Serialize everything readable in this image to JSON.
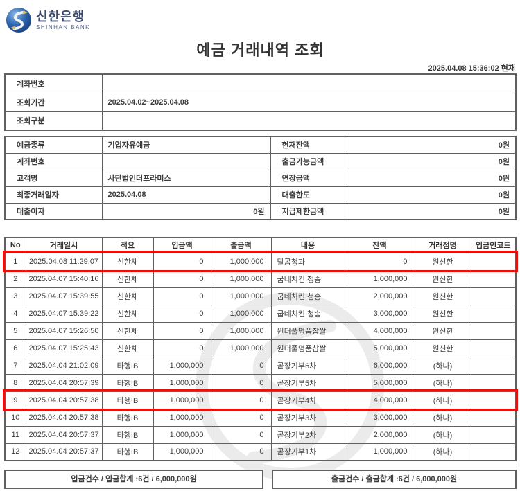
{
  "brand": {
    "name_ko": "신한은행",
    "name_en": "SHINHAN BANK"
  },
  "page": {
    "title": "예금 거래내역 조회",
    "timestamp": "2025.04.08 15:36:02 현재"
  },
  "colors": {
    "highlight_red": "#e8100c",
    "border_gray": "#606060",
    "brand_blue": "#1e4e9c",
    "brand_gold": "#d8b45c",
    "watermark_gray": "#ebebeb"
  },
  "icons": {
    "logo": "shinhan-globe-logo",
    "watermark": "shinhan-globe-watermark"
  },
  "query_info": {
    "rows": [
      {
        "label": "계좌번호",
        "value": ""
      },
      {
        "label": "조회기간",
        "value": "2025.04.02~2025.04.08"
      },
      {
        "label": "조회구분",
        "value": ""
      }
    ]
  },
  "account_info": {
    "rows": [
      {
        "label_left": "예금종류",
        "value_left": "기업자유예금",
        "label_right": "현재잔액",
        "value_right": "0원"
      },
      {
        "label_left": "계좌번호",
        "value_left": "",
        "label_right": "출금가능금액",
        "value_right": "0원"
      },
      {
        "label_left": "고객명",
        "value_left": "사단법인더프라미스",
        "label_right": "연장금액",
        "value_right": "0원"
      },
      {
        "label_left": "최종거래일자",
        "value_left": "2025.04.08",
        "label_right": "대출한도",
        "value_right": "0원"
      },
      {
        "label_left": "대출이자",
        "value_left": "0원",
        "label_right": "지급제한금액",
        "value_right": "0원"
      }
    ]
  },
  "transactions": {
    "columns": [
      "No",
      "거래일시",
      "적요",
      "입금액",
      "출금액",
      "내용",
      "잔액",
      "거래점명",
      "입금인코드"
    ],
    "rows": [
      {
        "no": "1",
        "datetime": "2025.04.08 11:29:07",
        "type": "신한체",
        "deposit": "0",
        "withdrawal": "1,000,000",
        "description": "달콤청과",
        "balance": "0",
        "branch": "원신한",
        "code": "",
        "highlighted": true
      },
      {
        "no": "2",
        "datetime": "2025.04.07 15:40:16",
        "type": "신한체",
        "deposit": "0",
        "withdrawal": "1,000,000",
        "description": "굽네치킨 청송",
        "balance": "1,000,000",
        "branch": "원신한",
        "code": "",
        "highlighted": false
      },
      {
        "no": "3",
        "datetime": "2025.04.07 15:39:55",
        "type": "신한체",
        "deposit": "0",
        "withdrawal": "1,000,000",
        "description": "굽네치킨 청송",
        "balance": "2,000,000",
        "branch": "원신한",
        "code": "",
        "highlighted": false
      },
      {
        "no": "4",
        "datetime": "2025.04.07 15:39:22",
        "type": "신한체",
        "deposit": "0",
        "withdrawal": "1,000,000",
        "description": "굽네치킨 청송",
        "balance": "3,000,000",
        "branch": "원신한",
        "code": "",
        "highlighted": false
      },
      {
        "no": "5",
        "datetime": "2025.04.07 15:26:50",
        "type": "신한체",
        "deposit": "0",
        "withdrawal": "1,000,000",
        "description": "원더풀명품찹쌀",
        "balance": "4,000,000",
        "branch": "원신한",
        "code": "",
        "highlighted": false
      },
      {
        "no": "6",
        "datetime": "2025.04.07 15:25:43",
        "type": "신한체",
        "deposit": "0",
        "withdrawal": "1,000,000",
        "description": "원더풀명품찹쌀",
        "balance": "5,000,000",
        "branch": "원신한",
        "code": "",
        "highlighted": false
      },
      {
        "no": "7",
        "datetime": "2025.04.04 21:02:09",
        "type": "타행IB",
        "deposit": "1,000,000",
        "withdrawal": "0",
        "description": "곧장기부6차",
        "balance": "6,000,000",
        "branch": "(하나)",
        "code": "",
        "highlighted": false
      },
      {
        "no": "8",
        "datetime": "2025.04.04 20:57:39",
        "type": "타행IB",
        "deposit": "1,000,000",
        "withdrawal": "0",
        "description": "곧장기부5차",
        "balance": "5,000,000",
        "branch": "(하나)",
        "code": "",
        "highlighted": false
      },
      {
        "no": "9",
        "datetime": "2025.04.04 20:57:38",
        "type": "타행IB",
        "deposit": "1,000,000",
        "withdrawal": "0",
        "description": "곧장기부4차",
        "balance": "4,000,000",
        "branch": "(하나)",
        "code": "",
        "highlighted": true
      },
      {
        "no": "10",
        "datetime": "2025.04.04 20:57:38",
        "type": "타행IB",
        "deposit": "1,000,000",
        "withdrawal": "0",
        "description": "곧장기부3차",
        "balance": "3,000,000",
        "branch": "(하나)",
        "code": "",
        "highlighted": false
      },
      {
        "no": "11",
        "datetime": "2025.04.04 20:57:37",
        "type": "타행IB",
        "deposit": "1,000,000",
        "withdrawal": "0",
        "description": "곧장기부2차",
        "balance": "2,000,000",
        "branch": "(하나)",
        "code": "",
        "highlighted": false
      },
      {
        "no": "12",
        "datetime": "2025.04.04 20:57:37",
        "type": "타행IB",
        "deposit": "1,000,000",
        "withdrawal": "0",
        "description": "곧장기부1차",
        "balance": "1,000,000",
        "branch": "(하나)",
        "code": "",
        "highlighted": false
      }
    ]
  },
  "summary": {
    "deposit": "입금건수 / 입금합계 :6건 / 6,000,000원",
    "withdrawal": "출금건수 / 출금합계 :6건 / 6,000,000원"
  }
}
